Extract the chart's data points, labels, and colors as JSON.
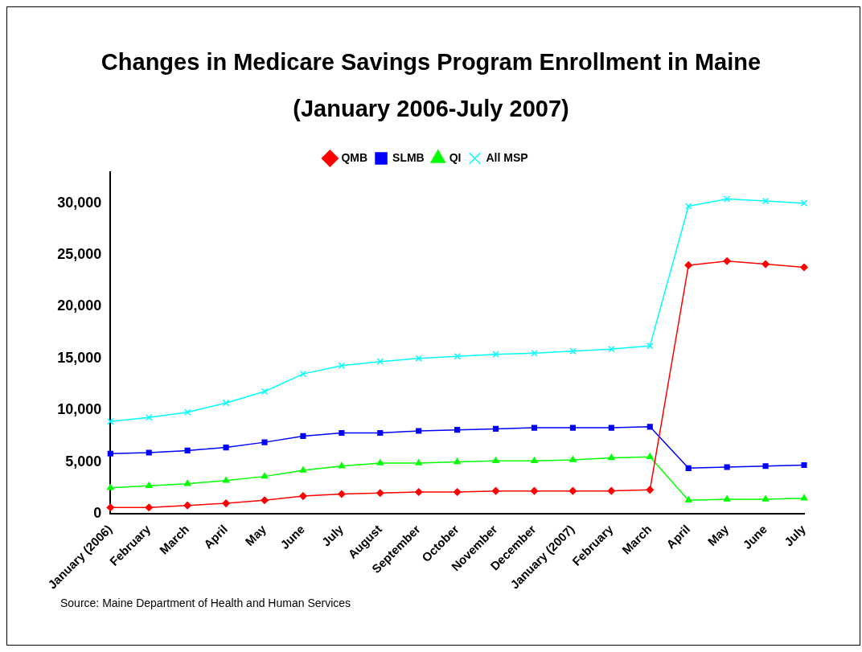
{
  "chart_data": {
    "type": "line",
    "title": "Changes in Medicare Savings Program Enrollment in Maine",
    "subtitle": "(January 2006-July 2007)",
    "categories": [
      "January (2006)",
      "February",
      "March",
      "April",
      "May",
      "June",
      "July",
      "August",
      "September",
      "October",
      "November",
      "December",
      "January (2007)",
      "February",
      "March",
      "April",
      "May",
      "June",
      "July"
    ],
    "series": [
      {
        "name": "QMB",
        "color": "#ff0000",
        "marker": "diamond",
        "values": [
          600,
          600,
          800,
          1000,
          1300,
          1700,
          1900,
          2000,
          2100,
          2100,
          2200,
          2200,
          2200,
          2200,
          2300,
          24000,
          24400,
          24100,
          23800
        ]
      },
      {
        "name": "SLMB",
        "color": "#0000ff",
        "marker": "square",
        "values": [
          5800,
          5900,
          6100,
          6400,
          6900,
          7500,
          7800,
          7800,
          8000,
          8100,
          8200,
          8300,
          8300,
          8300,
          8400,
          4400,
          4500,
          4600,
          4700
        ]
      },
      {
        "name": "QI",
        "color": "#00ff00",
        "marker": "triangle",
        "values": [
          2500,
          2700,
          2900,
          3200,
          3600,
          4200,
          4600,
          4900,
          4900,
          5000,
          5100,
          5100,
          5200,
          5400,
          5500,
          1300,
          1400,
          1400,
          1500
        ]
      },
      {
        "name": "All MSP",
        "color": "#00ffff",
        "marker": "cross",
        "values": [
          8900,
          9300,
          9800,
          10700,
          11800,
          13500,
          14300,
          14700,
          15000,
          15200,
          15400,
          15500,
          15700,
          15900,
          16200,
          29700,
          30400,
          30200,
          30000
        ]
      }
    ],
    "ylim": [
      0,
      33000
    ],
    "yticks": [
      0,
      {
        "value": 5000,
        "label": "5,000"
      },
      {
        "value": 10000,
        "label": "10,000"
      },
      {
        "value": 15000,
        "label": "15,000"
      },
      {
        "value": 20000,
        "label": "20,000"
      },
      {
        "value": 25000,
        "label": "25,000"
      },
      {
        "value": 30000,
        "label": "30,000"
      }
    ],
    "grid": false,
    "legend": "top",
    "line_style": "solid",
    "annotations": [
      "Source: Maine Department of Health and Human Services"
    ]
  }
}
